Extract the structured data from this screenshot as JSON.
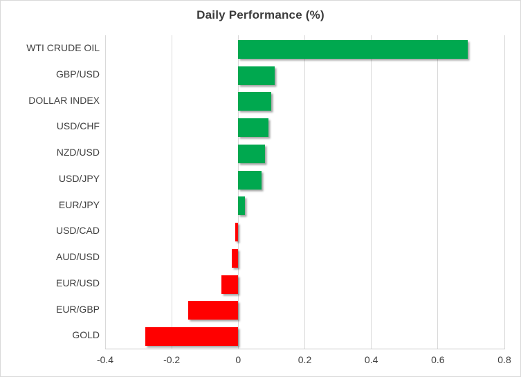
{
  "chart_data": {
    "type": "bar",
    "orientation": "horizontal",
    "title": "Daily Performance (%)",
    "categories": [
      "WTI CRUDE OIL",
      "GBP/USD",
      "DOLLAR INDEX",
      "USD/CHF",
      "NZD/USD",
      "USD/JPY",
      "EUR/JPY",
      "USD/CAD",
      "AUD/USD",
      "EUR/USD",
      "EUR/GBP",
      "GOLD"
    ],
    "values": [
      0.69,
      0.11,
      0.1,
      0.09,
      0.08,
      0.07,
      0.02,
      -0.01,
      -0.02,
      -0.05,
      -0.15,
      -0.28
    ],
    "xlim": [
      -0.4,
      0.8
    ],
    "xticks": [
      -0.4,
      -0.2,
      0,
      0.2,
      0.4,
      0.6,
      0.8
    ],
    "xtick_labels": [
      "-0.4",
      "-0.2",
      "0",
      "0.2",
      "0.4",
      "0.6",
      "0.8"
    ],
    "grid": "vertical",
    "legend_position": "none",
    "positive_color": "#00A84F",
    "negative_color": "#FF0000",
    "gridline_color": "#d9d9d9",
    "text_color": "#404040"
  }
}
